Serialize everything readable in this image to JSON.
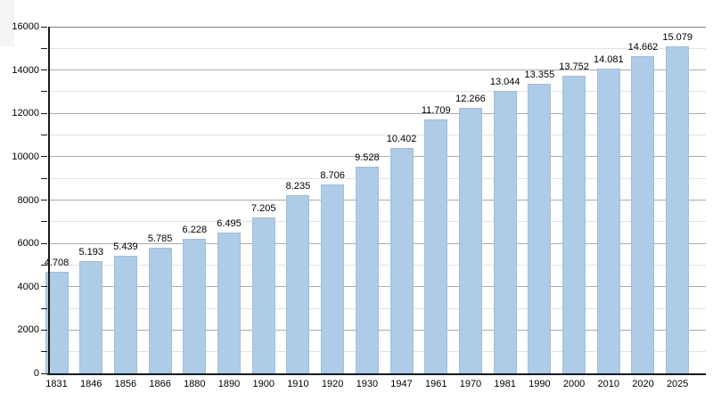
{
  "chart_data": {
    "type": "bar",
    "title": "",
    "xlabel": "",
    "ylabel": "",
    "categories": [
      "1831",
      "1846",
      "1856",
      "1866",
      "1880",
      "1890",
      "1900",
      "1910",
      "1920",
      "1930",
      "1947",
      "1961",
      "1970",
      "1981",
      "1990",
      "2000",
      "2010",
      "2020",
      "2025"
    ],
    "values": [
      4708,
      5193,
      5439,
      5785,
      6228,
      6495,
      7205,
      8235,
      8706,
      9528,
      10402,
      11709,
      12266,
      13044,
      13355,
      13752,
      14081,
      14662,
      15079
    ],
    "value_labels": [
      "4.708",
      "5.193",
      "5.439",
      "5.785",
      "6.228",
      "6.495",
      "7.205",
      "8.235",
      "8.706",
      "9.528",
      "10.402",
      "11.709",
      "12.266",
      "13.044",
      "13.355",
      "13.752",
      "14.081",
      "14.662",
      "15.079"
    ],
    "ylim": [
      0,
      16000
    ],
    "y_tick_labels": [
      "0",
      "2000",
      "4000",
      "6000",
      "8000",
      "10000",
      "12000",
      "14000",
      "16000"
    ],
    "y_tick_step_minor": 1000,
    "y_tick_step_major": 2000,
    "grid": true,
    "legend": "none",
    "colors": {
      "bar_fill": "#aecbe7",
      "bar_border": "#9fbfde",
      "grid_major": "#ababab",
      "grid_minor": "#e3e3e3",
      "grid_top": "#808080",
      "axis": "#1a1a1a",
      "text": "#000000",
      "background": "#ffffff"
    }
  }
}
